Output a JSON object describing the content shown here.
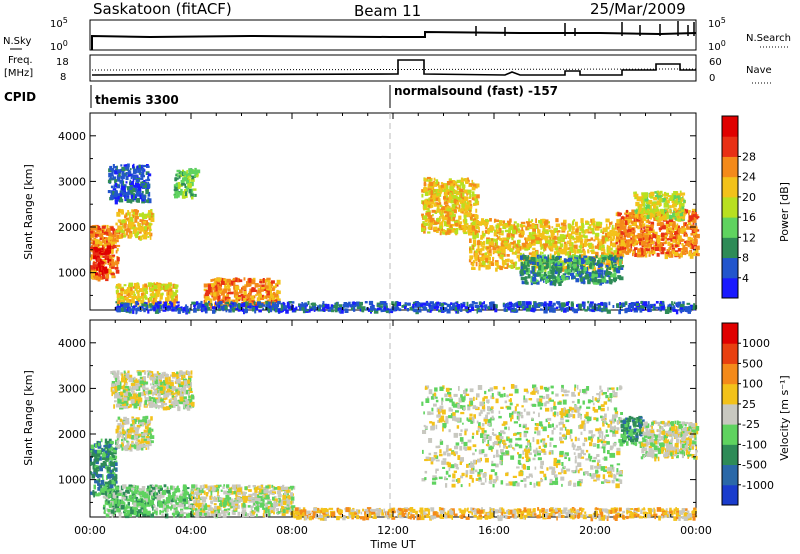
{
  "header": {
    "station": "Saskatoon (fitACF)",
    "beam": "Beam 11",
    "date": "25/Mar/2009"
  },
  "top_panels": {
    "nsky_label": "N.Sky",
    "nsearch_label": "N.Search",
    "freq_label_1": "Freq.",
    "freq_label_2": "[MHz]",
    "nave_label": "Nave",
    "cpid_label": "CPID",
    "cpid_1": "themis 3300",
    "cpid_2": "normalsound (fast) -157",
    "noise_ticks_left": [
      "10^5",
      "10^0"
    ],
    "noise_ticks_right": [
      "10^5",
      "10^0"
    ],
    "freq_ticks": [
      "18",
      "8"
    ],
    "nave_ticks": [
      "60",
      "0"
    ]
  },
  "chart_data": [
    {
      "type": "heatmap",
      "title": "",
      "xlabel": "",
      "ylabel": "Slant Range [km]",
      "xlim": [
        0,
        24
      ],
      "ylim": [
        180,
        4500
      ],
      "y_ticks": [
        "1000",
        "2000",
        "3000",
        "4000"
      ],
      "colorbar": {
        "label": "Power [dB]",
        "ticks": [
          "4",
          "8",
          "12",
          "16",
          "20",
          "24",
          "28"
        ],
        "colors": [
          "#1a1aff",
          "#2255cc",
          "#2e8b57",
          "#5fd35f",
          "#b8e020",
          "#f3c21a",
          "#f48a1a",
          "#e83015",
          "#e00000"
        ]
      },
      "regions": [
        {
          "t0": 0.0,
          "t1": 1.1,
          "r0": 900,
          "r1": 2050,
          "level": 6
        },
        {
          "t0": 0.1,
          "t1": 0.7,
          "r0": 1000,
          "r1": 1600,
          "level": 8
        },
        {
          "t0": 1.0,
          "t1": 2.4,
          "r0": 1800,
          "r1": 2400,
          "level": 5
        },
        {
          "t0": 0.7,
          "t1": 2.3,
          "r0": 2600,
          "r1": 3400,
          "level": 1
        },
        {
          "t0": 3.3,
          "t1": 4.2,
          "r0": 2700,
          "r1": 3300,
          "level": 3
        },
        {
          "t0": 1.0,
          "t1": 3.4,
          "r0": 280,
          "r1": 800,
          "level": 5
        },
        {
          "t0": 4.5,
          "t1": 7.4,
          "r0": 300,
          "r1": 900,
          "level": 6
        },
        {
          "t0": 1.0,
          "t1": 23.9,
          "r0": 190,
          "r1": 380,
          "level": 1
        },
        {
          "t0": 13.1,
          "t1": 15.3,
          "r0": 1900,
          "r1": 3100,
          "level": 5
        },
        {
          "t0": 15.0,
          "t1": 21.0,
          "r0": 1100,
          "r1": 2200,
          "level": 5
        },
        {
          "t0": 17.0,
          "t1": 21.0,
          "r0": 800,
          "r1": 1400,
          "level": 2
        },
        {
          "t0": 20.8,
          "t1": 24.0,
          "r0": 1400,
          "r1": 2400,
          "level": 6
        },
        {
          "t0": 21.5,
          "t1": 23.5,
          "r0": 2200,
          "r1": 2800,
          "level": 4
        }
      ]
    },
    {
      "type": "heatmap",
      "title": "",
      "xlabel": "Time UT",
      "ylabel": "Slant Range [km]",
      "xlim": [
        0,
        24
      ],
      "ylim": [
        180,
        4500
      ],
      "x_ticks": [
        "00:00",
        "04:00",
        "08:00",
        "12:00",
        "16:00",
        "20:00",
        "00:00"
      ],
      "y_ticks": [
        "1000",
        "2000",
        "3000",
        "4000"
      ],
      "colorbar": {
        "label": "Velocity [m s⁻¹]",
        "ticks": [
          "1000",
          "500",
          "100",
          "25",
          "-25",
          "-100",
          "-500",
          "-1000"
        ],
        "colors": [
          "#1a3ccc",
          "#2a68a8",
          "#2e8b57",
          "#5fd35f",
          "#c8c8c0",
          "#f3c21a",
          "#f48a1a",
          "#e84010",
          "#e00000"
        ]
      },
      "regions": [
        {
          "t0": 0.0,
          "t1": 1.0,
          "r0": 700,
          "r1": 1900,
          "level": 2
        },
        {
          "t0": 1.0,
          "t1": 2.4,
          "r0": 1700,
          "r1": 2400,
          "level": 4
        },
        {
          "t0": 0.8,
          "t1": 4.0,
          "r0": 2600,
          "r1": 3400,
          "level": 4
        },
        {
          "t0": 0.5,
          "t1": 4.0,
          "r0": 250,
          "r1": 900,
          "level": 3
        },
        {
          "t0": 4.0,
          "t1": 8.0,
          "r0": 250,
          "r1": 900,
          "level": 4
        },
        {
          "t0": 8.0,
          "t1": 23.9,
          "r0": 190,
          "r1": 400,
          "level": 5
        },
        {
          "t0": 13.1,
          "t1": 21.0,
          "r0": 900,
          "r1": 3100,
          "level": 4
        },
        {
          "t0": 21.0,
          "t1": 21.8,
          "r0": 1800,
          "r1": 2400,
          "level": 2
        },
        {
          "t0": 21.8,
          "t1": 24.0,
          "r0": 1500,
          "r1": 2300,
          "level": 4
        }
      ]
    }
  ]
}
